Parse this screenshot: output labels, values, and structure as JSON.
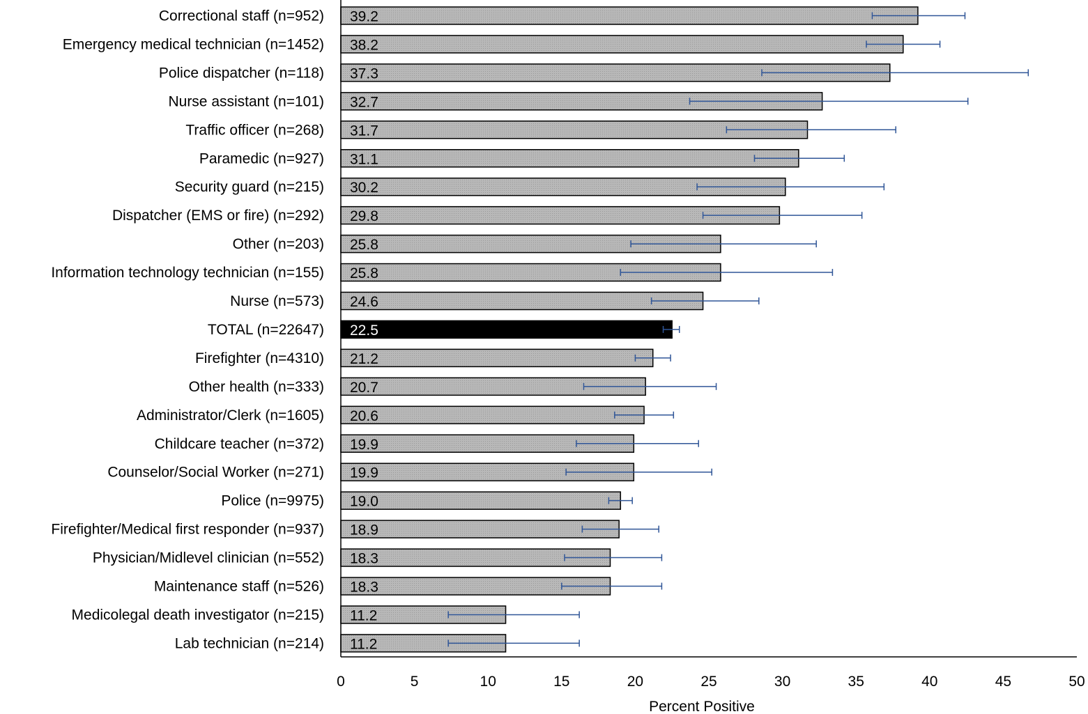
{
  "chart_data": {
    "type": "bar",
    "orientation": "horizontal",
    "xlabel": "Percent Positive",
    "xlim": [
      0,
      50
    ],
    "xticks": [
      0,
      5,
      10,
      15,
      20,
      25,
      30,
      35,
      40,
      45,
      50
    ],
    "grid": false,
    "bar_color": "#b3b3b3",
    "highlight_color": "#000000",
    "error_bar_color": "#2f5597",
    "categories": [
      "Correctional staff (n=952)",
      "Emergency medical technician (n=1452)",
      "Police dispatcher (n=118)",
      "Nurse assistant (n=101)",
      "Traffic officer (n=268)",
      "Paramedic (n=927)",
      "Security guard (n=215)",
      "Dispatcher (EMS or fire) (n=292)",
      "Other (n=203)",
      "Information technology technician (n=155)",
      "Nurse (n=573)",
      "TOTAL (n=22647)",
      "Firefighter (n=4310)",
      "Other health (n=333)",
      "Administrator/Clerk (n=1605)",
      "Childcare teacher (n=372)",
      "Counselor/Social Worker (n=271)",
      "Police (n=9975)",
      "Firefighter/Medical first responder (n=937)",
      "Physician/Midlevel clinician (n=552)",
      "Maintenance staff (n=526)",
      "Medicolegal death investigator (n=215)",
      "Lab technician (n=214)"
    ],
    "values": [
      39.2,
      38.2,
      37.3,
      32.7,
      31.7,
      31.1,
      30.2,
      29.8,
      25.8,
      25.8,
      24.6,
      22.5,
      21.2,
      20.7,
      20.6,
      19.9,
      19.9,
      19.0,
      18.9,
      18.3,
      18.3,
      11.2,
      11.2
    ],
    "value_labels": [
      "39.2",
      "38.2",
      "37.3",
      "32.7",
      "31.7",
      "31.1",
      "30.2",
      "29.8",
      "25.8",
      "25.8",
      "24.6",
      "22.5",
      "21.2",
      "20.7",
      "20.6",
      "19.9",
      "19.9",
      "19.0",
      "18.9",
      "18.3",
      "18.3",
      "11.2",
      "11.2"
    ],
    "error_low": [
      36.1,
      35.7,
      28.6,
      23.7,
      26.2,
      28.1,
      24.2,
      24.6,
      19.7,
      19.0,
      21.1,
      21.9,
      20.0,
      16.5,
      18.6,
      16.0,
      15.3,
      18.2,
      16.4,
      15.2,
      15.0,
      7.3,
      7.3
    ],
    "error_high": [
      42.4,
      40.7,
      46.7,
      42.6,
      37.7,
      34.2,
      36.9,
      35.4,
      32.3,
      33.4,
      28.4,
      23.0,
      22.4,
      25.5,
      22.6,
      24.3,
      25.2,
      19.8,
      21.6,
      21.8,
      21.8,
      16.2,
      16.2
    ],
    "highlight_index": 11
  }
}
